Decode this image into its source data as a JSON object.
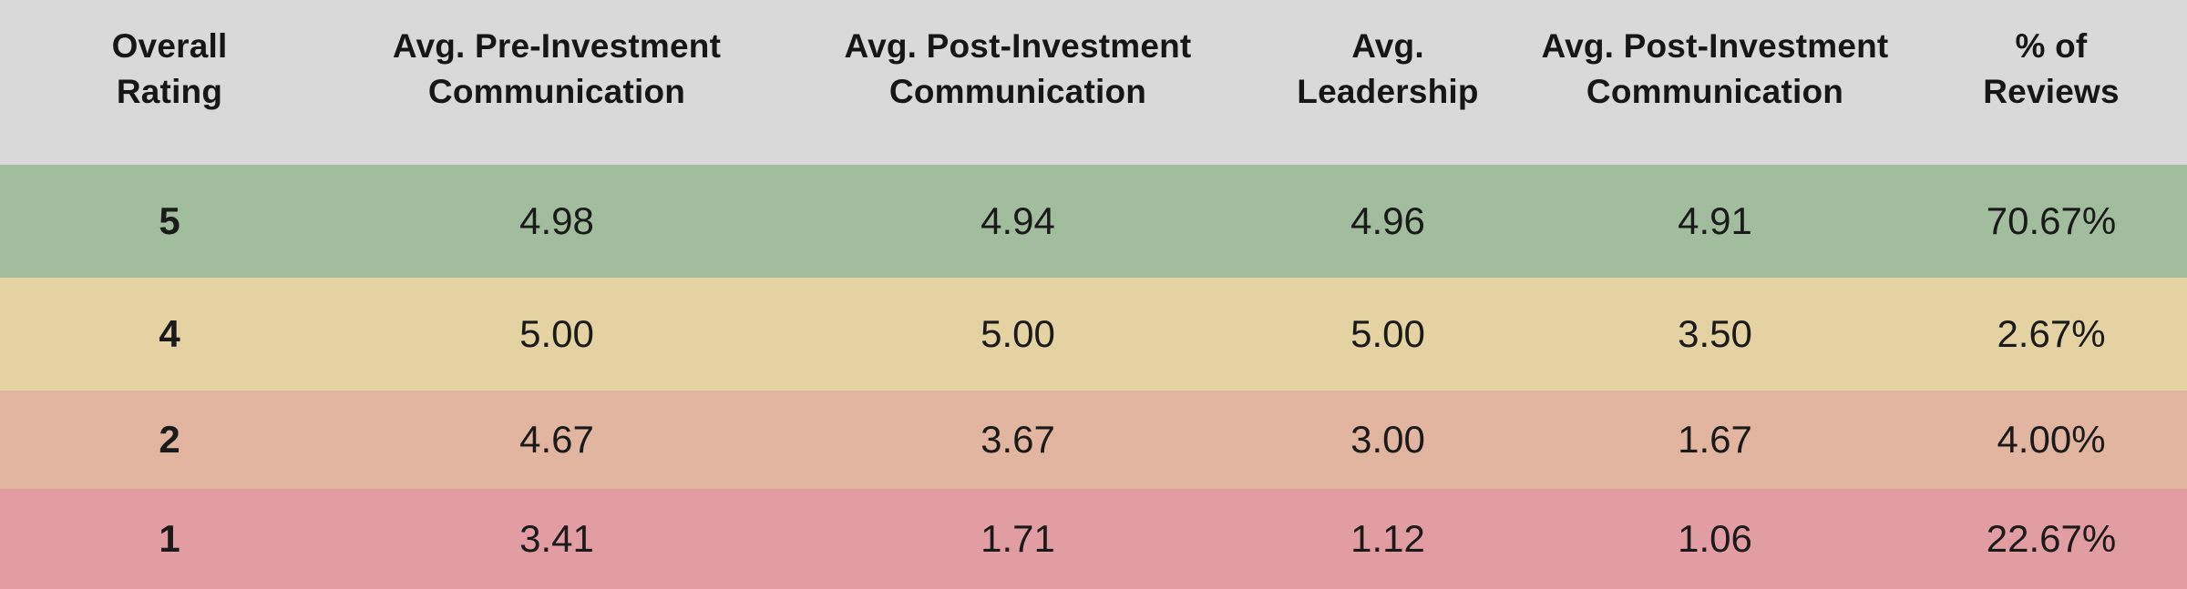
{
  "colors": {
    "header_bg": "#d9d9d9",
    "row_5_bg": "#a1bd9e",
    "row_4_bg": "#e4d2a2",
    "row_2_bg": "#e2b5a0",
    "row_1_bg": "#e29da3",
    "text": "#161616"
  },
  "table": {
    "headers": [
      {
        "label": "Overall\nRating"
      },
      {
        "label": "Avg. Pre-Investment\nCommunication"
      },
      {
        "label": "Avg. Post-Investment\nCommunication"
      },
      {
        "label": "Avg.\nLeadership"
      },
      {
        "label": "Avg. Post-Investment\nCommunication"
      },
      {
        "label": "% of\nReviews"
      }
    ],
    "rows": [
      {
        "bg": "#a1bd9e",
        "cells": [
          "5",
          "4.98",
          "4.94",
          "4.96",
          "4.91",
          "70.67%"
        ]
      },
      {
        "bg": "#e4d2a2",
        "cells": [
          "4",
          "5.00",
          "5.00",
          "5.00",
          "3.50",
          "2.67%"
        ]
      },
      {
        "bg": "#e2b5a0",
        "cells": [
          "2",
          "4.67",
          "3.67",
          "3.00",
          "1.67",
          "4.00%"
        ]
      },
      {
        "bg": "#e29da3",
        "cells": [
          "1",
          "3.41",
          "1.71",
          "1.12",
          "1.06",
          "22.67%"
        ]
      }
    ]
  },
  "chart_data": {
    "type": "table",
    "columns": [
      "Overall Rating",
      "Avg. Pre-Investment Communication",
      "Avg. Post-Investment Communication",
      "Avg. Leadership",
      "Avg. Post-Investment Communication",
      "% of Reviews"
    ],
    "rows": [
      [
        "5",
        "4.98",
        "4.94",
        "4.96",
        "4.91",
        "70.67%"
      ],
      [
        "4",
        "5.00",
        "5.00",
        "5.00",
        "3.50",
        "2.67%"
      ],
      [
        "2",
        "4.67",
        "3.67",
        "3.00",
        "1.67",
        "4.00%"
      ],
      [
        "1",
        "3.41",
        "1.71",
        "1.12",
        "1.06",
        "22.67%"
      ]
    ],
    "row_colors": [
      "#a1bd9e",
      "#e4d2a2",
      "#e2b5a0",
      "#e29da3"
    ],
    "header_color": "#d9d9d9",
    "notes": "rows color-coded by overall rating: green=5, tan=4, orange=2, red=1"
  }
}
